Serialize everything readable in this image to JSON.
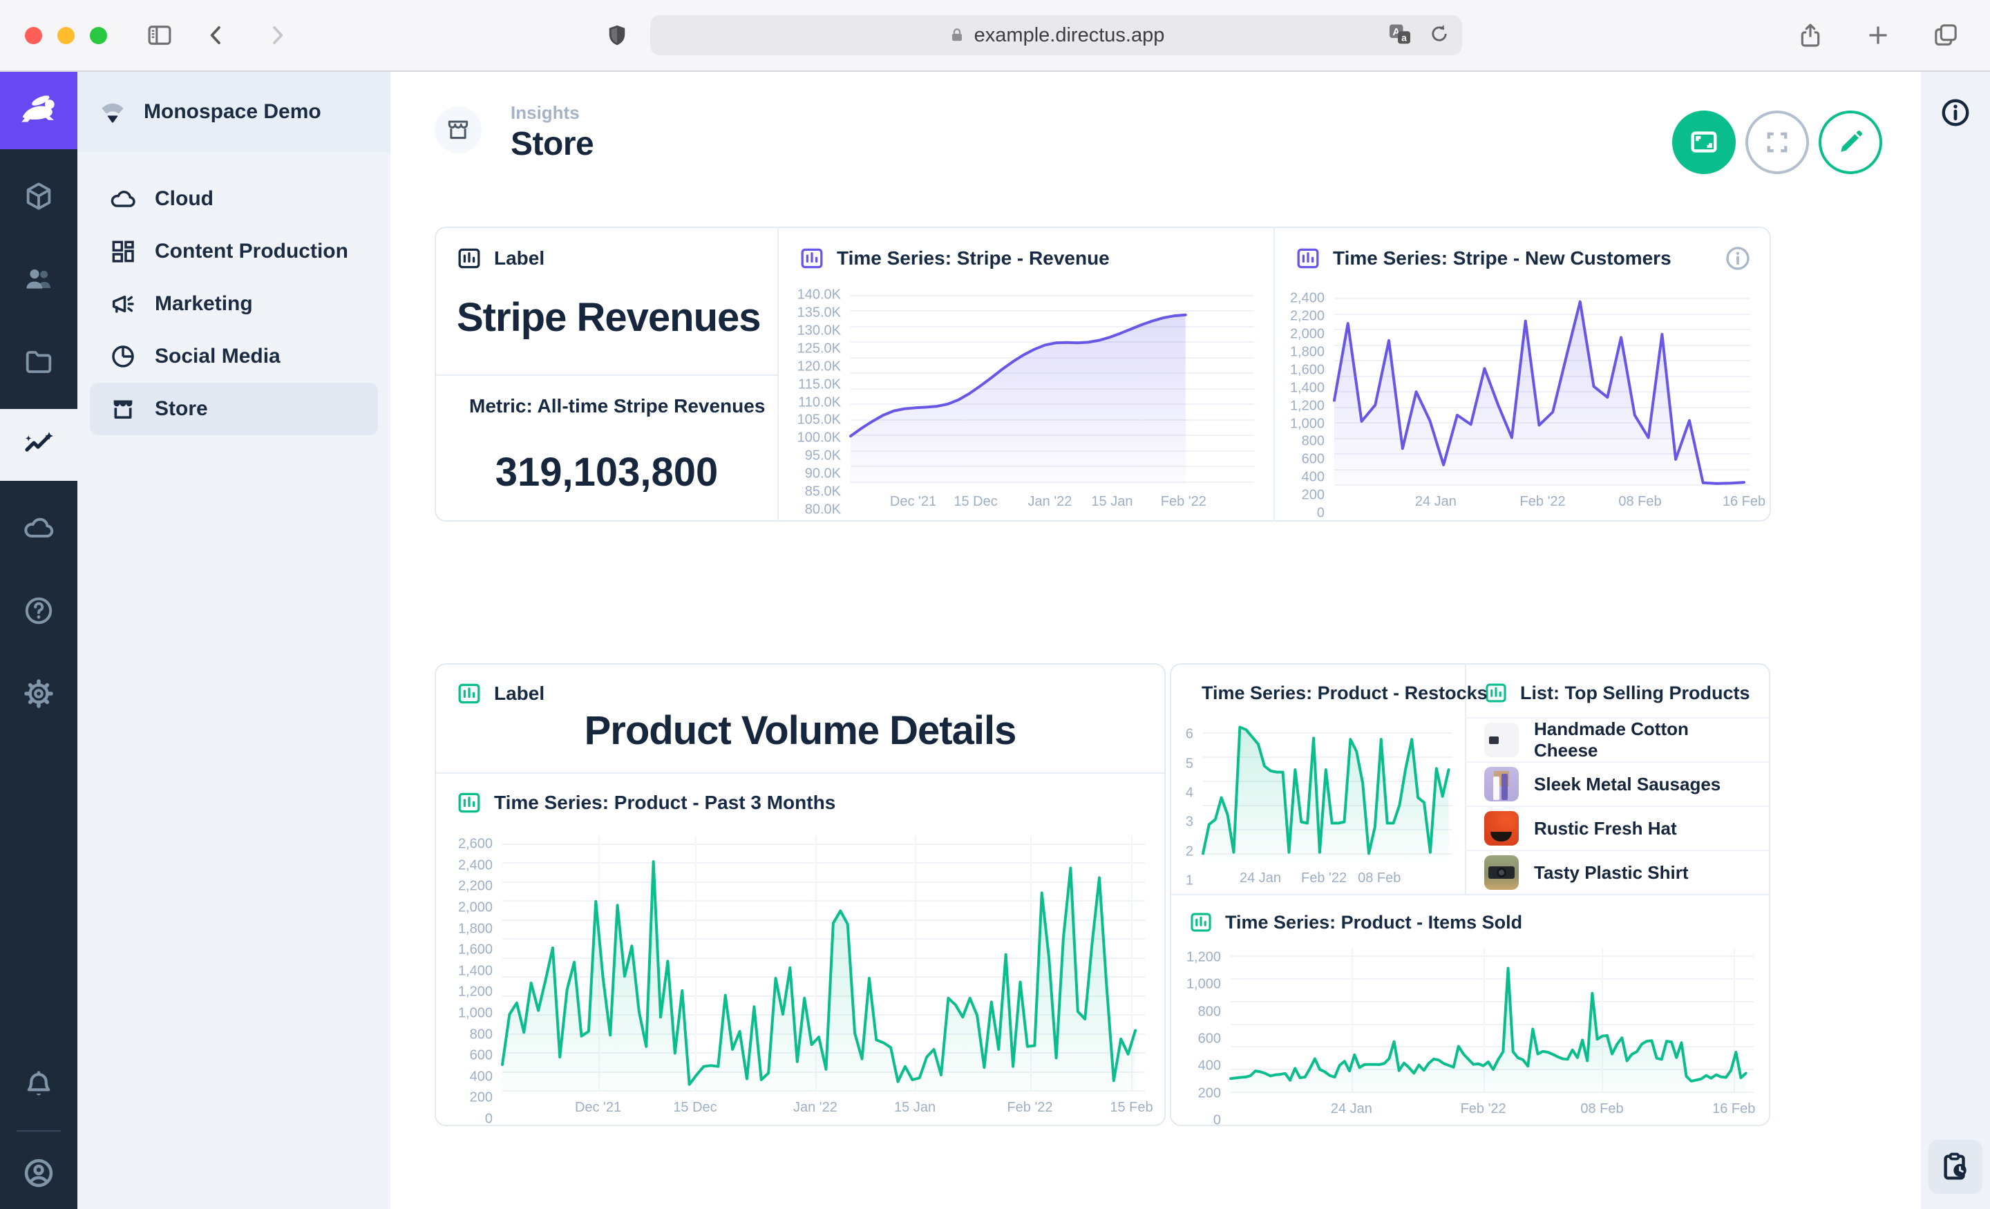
{
  "browser": {
    "url": "example.directus.app"
  },
  "project": {
    "name": "Monospace Demo"
  },
  "nav": {
    "items": [
      {
        "label": "Cloud"
      },
      {
        "label": "Content Production"
      },
      {
        "label": "Marketing"
      },
      {
        "label": "Social Media"
      },
      {
        "label": "Store"
      }
    ]
  },
  "header": {
    "breadcrumb": "Insights",
    "title": "Store"
  },
  "panels": {
    "label1": {
      "header": "Label",
      "text": "Stripe Revenues"
    },
    "metric": {
      "header": "Metric: All-time Stripe Revenues",
      "value": "319,103,800"
    },
    "label2": {
      "header": "Label",
      "text": "Product Volume Details"
    }
  },
  "list": {
    "title": "List: Top Selling Products",
    "items": [
      {
        "name": "Handmade Cotton Cheese"
      },
      {
        "name": "Sleek Metal Sausages"
      },
      {
        "name": "Rustic Fresh Hat"
      },
      {
        "name": "Tasty Plastic Shirt"
      }
    ]
  },
  "colors": {
    "accent_green": "#0abd8c",
    "accent_purple": "#6857e6",
    "navy": "#16263c"
  },
  "charts": {
    "stripe_revenue": {
      "type": "area",
      "title": "Time Series: Stripe - Revenue",
      "color": "#6857e6",
      "ymin": 79000,
      "ymax": 141000,
      "span": 0.83,
      "vgrid": false,
      "yticks": [
        {
          "label": "140.0K",
          "v": 140000
        },
        {
          "label": "135.0K",
          "v": 135000
        },
        {
          "label": "130.0K",
          "v": 130000
        },
        {
          "label": "125.0K",
          "v": 125000
        },
        {
          "label": "120.0K",
          "v": 120000
        },
        {
          "label": "115.0K",
          "v": 115000
        },
        {
          "label": "110.0K",
          "v": 110000
        },
        {
          "label": "105.0K",
          "v": 105000
        },
        {
          "label": "100.0K",
          "v": 100000
        },
        {
          "label": "95.0K",
          "v": 95000
        },
        {
          "label": "90.0K",
          "v": 90000
        },
        {
          "label": "85.0K",
          "v": 85000
        },
        {
          "label": "80.0K",
          "v": 80000
        }
      ],
      "xticks": [
        {
          "label": "Dec '21",
          "pos": 0.155
        },
        {
          "label": "15 Dec",
          "pos": 0.31
        },
        {
          "label": "Jan '22",
          "pos": 0.494
        },
        {
          "label": "15 Jan",
          "pos": 0.648
        },
        {
          "label": "Feb '22",
          "pos": 0.825
        }
      ],
      "values": [
        94500,
        97000,
        99200,
        101200,
        102600,
        103300,
        103600,
        103800,
        104100,
        104800,
        106200,
        108200,
        110600,
        113200,
        115900,
        118400,
        120600,
        122400,
        123800,
        124500,
        124600,
        124500,
        124700,
        125300,
        126300,
        127600,
        129000,
        130400,
        131600,
        132600,
        133200,
        133500
      ]
    },
    "new_customers": {
      "type": "area",
      "title": "Time Series: Stripe - New Customers",
      "color": "#6857e6",
      "ymin": 0,
      "ymax": 2480,
      "span": 0.985,
      "vgrid": false,
      "yticks": [
        {
          "label": "2,400",
          "v": 2400
        },
        {
          "label": "2,200",
          "v": 2200
        },
        {
          "label": "2,000",
          "v": 2000
        },
        {
          "label": "1,800",
          "v": 1800
        },
        {
          "label": "1,600",
          "v": 1600
        },
        {
          "label": "1,400",
          "v": 1400
        },
        {
          "label": "1,200",
          "v": 1200
        },
        {
          "label": "1,000",
          "v": 1000
        },
        {
          "label": "800",
          "v": 800
        },
        {
          "label": "600",
          "v": 600
        },
        {
          "label": "400",
          "v": 400
        },
        {
          "label": "200",
          "v": 200
        },
        {
          "label": "0",
          "v": 0
        }
      ],
      "xticks": [
        {
          "label": "24 Jan",
          "pos": 0.244
        },
        {
          "label": "Feb '22",
          "pos": 0.501
        },
        {
          "label": "08 Feb",
          "pos": 0.735
        },
        {
          "label": "16 Feb",
          "pos": 0.985
        }
      ],
      "values": [
        1080,
        2070,
        810,
        1020,
        1850,
        460,
        1190,
        820,
        250,
        890,
        770,
        1490,
        1020,
        600,
        2100,
        760,
        930,
        1650,
        2350,
        1260,
        1120,
        1890,
        890,
        600,
        1930,
        320,
        820,
        20,
        10,
        15,
        25
      ]
    },
    "past_3_months": {
      "type": "area",
      "title": "Time Series: Product - Past 3 Months",
      "color": "#0abd8c",
      "ymin": 0,
      "ymax": 2680,
      "span": 0.985,
      "vgrid": true,
      "yticks": [
        {
          "label": "2,600",
          "v": 2600
        },
        {
          "label": "2,400",
          "v": 2400
        },
        {
          "label": "2,200",
          "v": 2200
        },
        {
          "label": "2,000",
          "v": 2000
        },
        {
          "label": "1,800",
          "v": 1800
        },
        {
          "label": "1,600",
          "v": 1600
        },
        {
          "label": "1,400",
          "v": 1400
        },
        {
          "label": "1,200",
          "v": 1200
        },
        {
          "label": "1,000",
          "v": 1000
        },
        {
          "label": "800",
          "v": 800
        },
        {
          "label": "600",
          "v": 600
        },
        {
          "label": "400",
          "v": 400
        },
        {
          "label": "200",
          "v": 200
        },
        {
          "label": "0",
          "v": 0
        }
      ],
      "xticks": [
        {
          "label": "Dec '21",
          "pos": 0.149
        },
        {
          "label": "15 Dec",
          "pos": 0.3
        },
        {
          "label": "Jan '22",
          "pos": 0.487
        },
        {
          "label": "15 Jan",
          "pos": 0.642
        },
        {
          "label": "Feb '22",
          "pos": 0.821
        },
        {
          "label": "15 Feb",
          "pos": 0.979
        }
      ],
      "values": [
        270,
        800,
        920,
        610,
        1130,
        840,
        1160,
        1500,
        350,
        1060,
        1350,
        570,
        620,
        1990,
        1180,
        580,
        1950,
        1200,
        1520,
        830,
        460,
        2410,
        770,
        1360,
        390,
        1050,
        60,
        160,
        250,
        260,
        250,
        1000,
        430,
        620,
        120,
        880,
        110,
        180,
        1180,
        800,
        1290,
        300,
        970,
        480,
        560,
        220,
        1760,
        1890,
        1750,
        600,
        330,
        1180,
        530,
        500,
        450,
        90,
        250,
        110,
        130,
        350,
        430,
        160,
        970,
        900,
        770,
        970,
        790,
        240,
        930,
        430,
        1430,
        250,
        1140,
        460,
        470,
        2080,
        1390,
        340,
        1610,
        2340,
        830,
        750,
        1550,
        2240,
        1110,
        100,
        540,
        380,
        630
      ]
    },
    "restocks": {
      "type": "area",
      "title": "Time Series: Product - Restocks",
      "color": "#0abd8c",
      "ymin": 0.7,
      "ymax": 6.5,
      "span": 0.985,
      "vgrid": false,
      "yticks": [
        {
          "label": "6",
          "v": 6
        },
        {
          "label": "5",
          "v": 5
        },
        {
          "label": "4",
          "v": 4
        },
        {
          "label": "3",
          "v": 3
        },
        {
          "label": "2",
          "v": 2
        },
        {
          "label": "1",
          "v": 1
        }
      ],
      "xticks": [
        {
          "label": "24 Jan",
          "pos": 0.23
        },
        {
          "label": "Feb '22",
          "pos": 0.485
        },
        {
          "label": "08 Feb",
          "pos": 0.707
        }
      ],
      "values": [
        1,
        2.2,
        2.4,
        3.3,
        2.6,
        1.05,
        6.2,
        6.1,
        5.8,
        5.5,
        4.6,
        4.4,
        4.35,
        4.35,
        1.05,
        4.45,
        2.3,
        2.25,
        5.75,
        1.05,
        4.45,
        2.25,
        2.25,
        2.3,
        5.7,
        5.2,
        3.9,
        1.0,
        2.1,
        5.7,
        2.25,
        2.25,
        3.0,
        4.5,
        5.7,
        3.3,
        3.1,
        1.05,
        4.5,
        3.35,
        4.45
      ]
    },
    "items_sold": {
      "type": "area",
      "title": "Time Series: Product - Items Sold",
      "color": "#0abd8c",
      "ymin": 0,
      "ymax": 1270,
      "span": 0.985,
      "vgrid": true,
      "yticks": [
        {
          "label": "1,200",
          "v": 1200
        },
        {
          "label": "1,000",
          "v": 1000
        },
        {
          "label": "800",
          "v": 800
        },
        {
          "label": "600",
          "v": 600
        },
        {
          "label": "400",
          "v": 400
        },
        {
          "label": "200",
          "v": 200
        },
        {
          "label": "0",
          "v": 0
        }
      ],
      "xticks": [
        {
          "label": "24 Jan",
          "pos": 0.231
        },
        {
          "label": "Feb '22",
          "pos": 0.483
        },
        {
          "label": "08 Feb",
          "pos": 0.71
        },
        {
          "label": "16 Feb",
          "pos": 0.962
        }
      ],
      "values": [
        115,
        120,
        125,
        128,
        140,
        182,
        175,
        160,
        138,
        148,
        152,
        160,
        100,
        205,
        122,
        128,
        202,
        290,
        195,
        175,
        142,
        128,
        232,
        268,
        182,
        325,
        212,
        238,
        240,
        240,
        238,
        248,
        292,
        442,
        185,
        252,
        212,
        162,
        235,
        188,
        250,
        288,
        278,
        248,
        232,
        215,
        400,
        332,
        285,
        240,
        245,
        228,
        262,
        195,
        282,
        352,
        1090,
        352,
        298,
        282,
        225,
        552,
        332,
        355,
        348,
        330,
        308,
        290,
        285,
        368,
        300,
        455,
        272,
        868,
        462,
        490,
        495,
        332,
        418,
        475,
        272,
        330,
        352,
        420,
        445,
        450,
        295,
        285,
        445,
        438,
        300,
        432,
        135,
        92,
        102,
        112,
        142,
        118,
        148,
        130,
        125,
        188,
        348,
        122,
        162
      ]
    }
  }
}
